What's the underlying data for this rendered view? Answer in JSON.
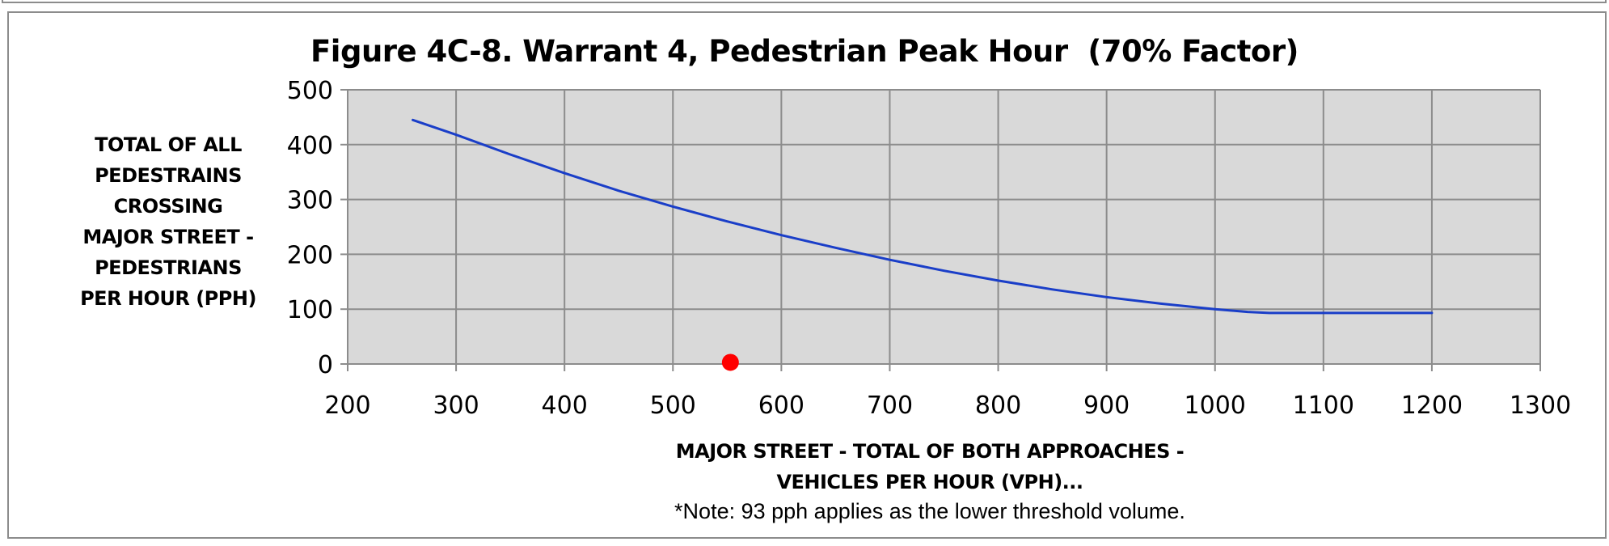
{
  "chart_data": {
    "type": "line",
    "title": "Figure 4C-8. Warrant 4, Pedestrian Peak Hour  (70% Factor)",
    "ylabel_lines": [
      "TOTAL OF ALL",
      "PEDESTRAINS",
      "CROSSING",
      "MAJOR STREET -",
      "PEDESTRIANS",
      "PER HOUR (PPH)"
    ],
    "xlabel_lines": [
      "MAJOR STREET - TOTAL OF BOTH APPROACHES -",
      "VEHICLES PER HOUR (VPH)..."
    ],
    "note": "*Note: 93 pph applies as the lower threshold volume.",
    "xlim": [
      200,
      1300
    ],
    "ylim": [
      0,
      500
    ],
    "x_ticks": [
      200,
      300,
      400,
      500,
      600,
      700,
      800,
      900,
      1000,
      1100,
      1200,
      1300
    ],
    "y_ticks": [
      0,
      100,
      200,
      300,
      400,
      500
    ],
    "grid": true,
    "series": [
      {
        "type": "line",
        "color": "#1a3ec8",
        "x": [
          260,
          300,
          350,
          400,
          450,
          500,
          550,
          600,
          650,
          700,
          750,
          800,
          850,
          900,
          950,
          1000,
          1030,
          1050,
          1100,
          1150,
          1200
        ],
        "y": [
          445,
          418,
          382,
          348,
          316,
          287,
          260,
          235,
          212,
          190,
          170,
          152,
          136,
          122,
          110,
          100,
          95,
          93,
          93,
          93,
          93
        ]
      },
      {
        "type": "scatter",
        "color": "#ff0000",
        "x": [
          553
        ],
        "y": [
          3
        ]
      }
    ]
  }
}
